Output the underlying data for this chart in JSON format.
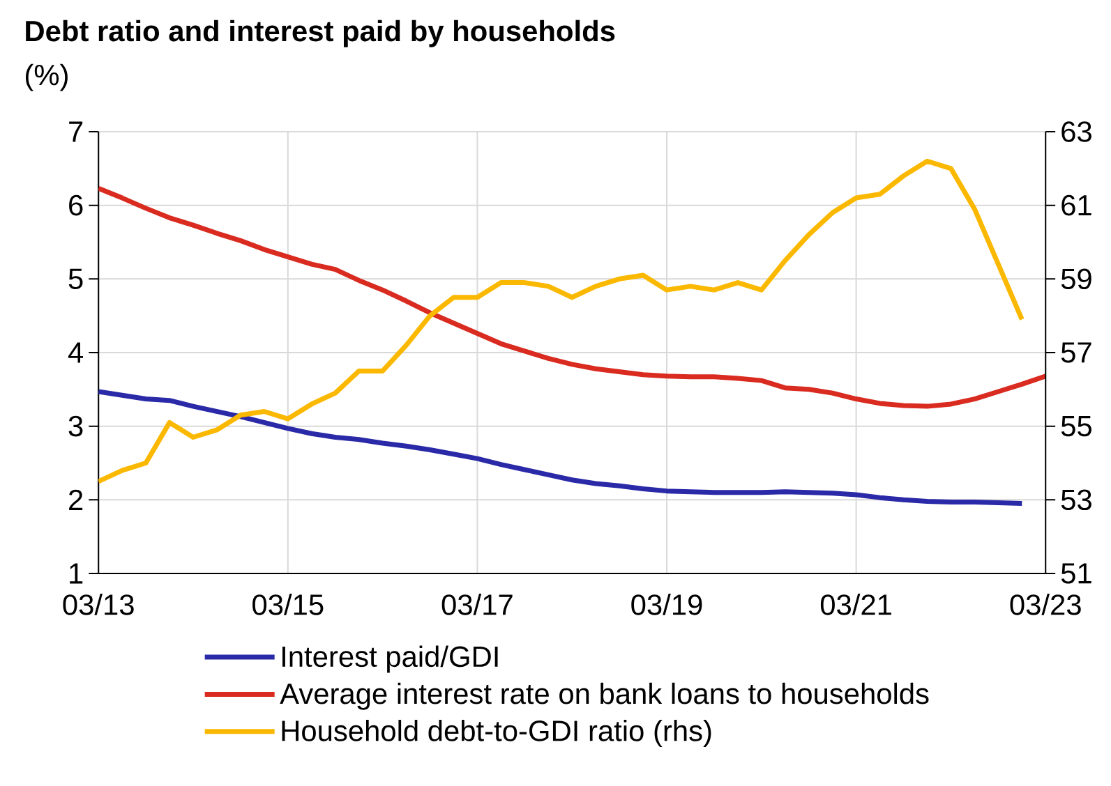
{
  "chart_data": {
    "type": "line",
    "title": "Debt ratio and interest paid by households",
    "subtitle": "(%)",
    "xlim": [
      "2013-03",
      "2023-03"
    ],
    "xticks": [
      {
        "value": "2013-03",
        "label": "03/13"
      },
      {
        "value": "2015-03",
        "label": "03/15"
      },
      {
        "value": "2017-03",
        "label": "03/17"
      },
      {
        "value": "2019-03",
        "label": "03/19"
      },
      {
        "value": "2021-03",
        "label": "03/21"
      },
      {
        "value": "2023-03",
        "label": "03/23"
      }
    ],
    "ylim": [
      1,
      7
    ],
    "yticks": [
      1,
      2,
      3,
      4,
      5,
      6,
      7
    ],
    "y2lim": [
      51,
      63
    ],
    "y2ticks": [
      51,
      53,
      55,
      57,
      59,
      61,
      63
    ],
    "grid": true,
    "legend": "bottom",
    "line_style": "solid",
    "series": [
      {
        "name": "Interest paid/GDI",
        "color": "#2a2aa8",
        "x": [
          "2013-03",
          "2013-06",
          "2013-09",
          "2013-12",
          "2014-03",
          "2014-06",
          "2014-09",
          "2014-12",
          "2015-03",
          "2015-06",
          "2015-09",
          "2015-12",
          "2016-03",
          "2016-06",
          "2016-09",
          "2016-12",
          "2017-03",
          "2017-06",
          "2017-09",
          "2017-12",
          "2018-03",
          "2018-06",
          "2018-09",
          "2018-12",
          "2019-03",
          "2019-06",
          "2019-09",
          "2019-12",
          "2020-03",
          "2020-06",
          "2020-09",
          "2020-12",
          "2021-03",
          "2021-06",
          "2021-09",
          "2021-12",
          "2022-03",
          "2022-06",
          "2022-09",
          "2022-12"
        ],
        "values": [
          3.47,
          3.42,
          3.37,
          3.35,
          3.27,
          3.2,
          3.13,
          3.05,
          2.97,
          2.9,
          2.85,
          2.82,
          2.77,
          2.73,
          2.68,
          2.62,
          2.56,
          2.48,
          2.41,
          2.34,
          2.27,
          2.22,
          2.19,
          2.15,
          2.12,
          2.11,
          2.1,
          2.1,
          2.1,
          2.11,
          2.1,
          2.09,
          2.07,
          2.03,
          2.0,
          1.98,
          1.97,
          1.97,
          1.96,
          1.95
        ]
      },
      {
        "name": "Average interest rate on bank loans to households",
        "color": "#d92b20",
        "x": [
          "2013-03",
          "2013-06",
          "2013-09",
          "2013-12",
          "2014-03",
          "2014-06",
          "2014-09",
          "2014-12",
          "2015-03",
          "2015-06",
          "2015-09",
          "2015-12",
          "2016-03",
          "2016-06",
          "2016-09",
          "2016-12",
          "2017-03",
          "2017-06",
          "2017-09",
          "2017-12",
          "2018-03",
          "2018-06",
          "2018-09",
          "2018-12",
          "2019-03",
          "2019-06",
          "2019-09",
          "2019-12",
          "2020-03",
          "2020-06",
          "2020-09",
          "2020-12",
          "2021-03",
          "2021-06",
          "2021-09",
          "2021-12",
          "2022-03",
          "2022-06",
          "2022-09",
          "2022-12",
          "2023-03"
        ],
        "values": [
          6.23,
          6.1,
          5.96,
          5.83,
          5.73,
          5.62,
          5.52,
          5.4,
          5.3,
          5.2,
          5.13,
          4.98,
          4.85,
          4.7,
          4.54,
          4.4,
          4.26,
          4.12,
          4.02,
          3.92,
          3.84,
          3.78,
          3.74,
          3.7,
          3.68,
          3.67,
          3.67,
          3.65,
          3.62,
          3.52,
          3.5,
          3.45,
          3.37,
          3.31,
          3.28,
          3.27,
          3.3,
          3.37,
          3.47,
          3.57,
          3.68
        ]
      },
      {
        "name": "Household debt-to-GDI ratio (rhs)",
        "color": "#fbb800",
        "axis": "y2",
        "x": [
          "2013-03",
          "2013-06",
          "2013-09",
          "2013-12",
          "2014-03",
          "2014-06",
          "2014-09",
          "2014-12",
          "2015-03",
          "2015-06",
          "2015-09",
          "2015-12",
          "2016-03",
          "2016-06",
          "2016-09",
          "2016-12",
          "2017-03",
          "2017-06",
          "2017-09",
          "2017-12",
          "2018-03",
          "2018-06",
          "2018-09",
          "2018-12",
          "2019-03",
          "2019-06",
          "2019-09",
          "2019-12",
          "2020-03",
          "2020-06",
          "2020-09",
          "2020-12",
          "2021-03",
          "2021-06",
          "2021-09",
          "2021-12",
          "2022-03",
          "2022-06",
          "2022-09",
          "2022-12"
        ],
        "values": [
          53.5,
          53.8,
          54.0,
          55.1,
          54.7,
          54.9,
          55.3,
          55.4,
          55.2,
          55.6,
          55.9,
          56.5,
          56.5,
          57.2,
          58.0,
          58.5,
          58.5,
          58.9,
          58.9,
          58.8,
          58.5,
          58.8,
          59.0,
          59.1,
          58.7,
          58.8,
          58.7,
          58.9,
          58.7,
          59.5,
          60.2,
          60.8,
          61.2,
          61.3,
          61.8,
          62.2,
          62.0,
          60.9,
          59.4,
          57.9
        ]
      }
    ]
  }
}
